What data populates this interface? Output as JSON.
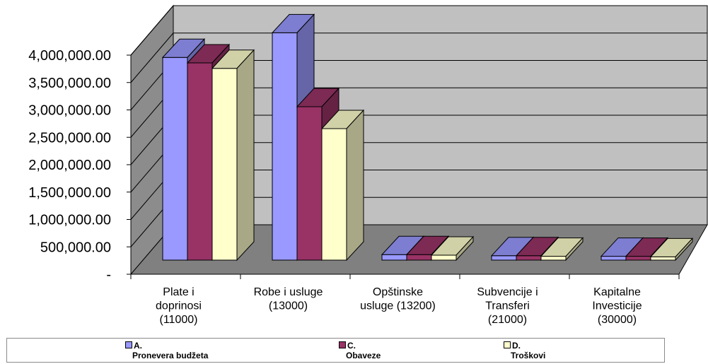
{
  "chart_data": {
    "type": "bar",
    "variant": "3d-clustered-column",
    "categories": [
      [
        "Plate i",
        "doprinosi",
        "(11000)"
      ],
      [
        "Robe i usluge",
        "(13000)"
      ],
      [
        "Opštinske",
        "usluge (13200)"
      ],
      [
        "Subvencije i",
        "Transferi",
        "(21000)"
      ],
      [
        "Kapitalne",
        "Investicije",
        "(30000)"
      ]
    ],
    "series": [
      {
        "name": "A. Pronevera budžeta",
        "label_top": "A.",
        "label_bottom": "Pronevera budžeta",
        "color": "#9999ff",
        "values": [
          3700000,
          4150000,
          100000,
          80000,
          70000
        ]
      },
      {
        "name": "C. Obaveze",
        "label_top": "C.",
        "label_bottom": "Obaveze",
        "color": "#993366",
        "values": [
          3600000,
          2800000,
          100000,
          80000,
          70000
        ]
      },
      {
        "name": "D. Troškovi",
        "label_top": "D.",
        "label_bottom": "Troškovi",
        "color": "#ffffcc",
        "values": [
          3500000,
          2400000,
          90000,
          70000,
          60000
        ]
      }
    ],
    "y_ticks": [
      "-",
      "500,000.00",
      "1,000,000.00",
      "1,500,000.00",
      "2,000,000.00",
      "2,500,000.00",
      "3,000,000.00",
      "3,500,000.00",
      "4,000,000.00"
    ],
    "ylim": [
      0,
      4000000
    ],
    "title": "",
    "xlabel": "",
    "ylabel": "",
    "grid": true,
    "legend_position": "bottom",
    "colors": {
      "wall": "#c0c0c0",
      "floor": "#808080",
      "gridline": "#000000"
    }
  }
}
